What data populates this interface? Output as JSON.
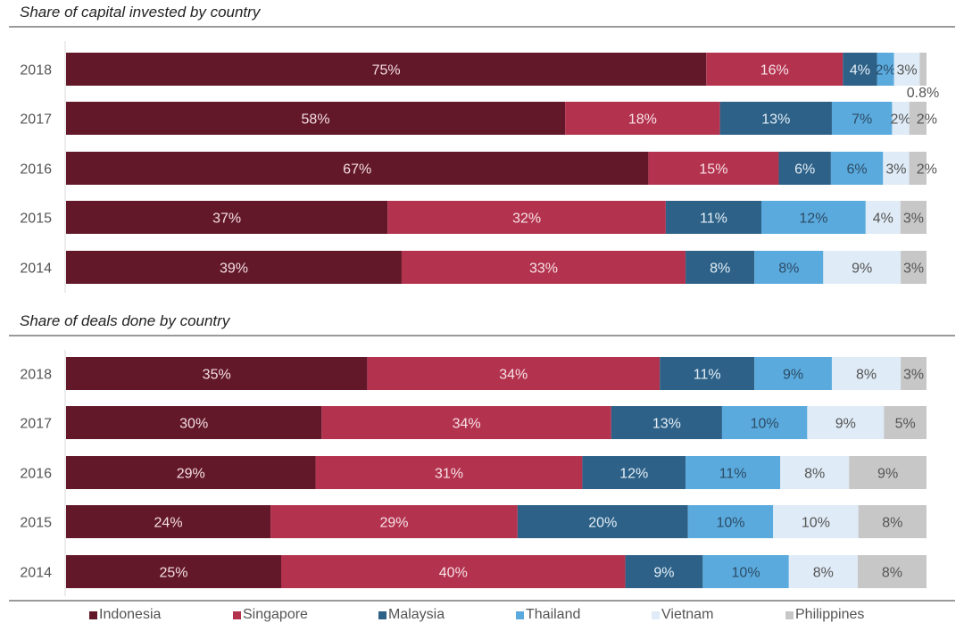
{
  "colors": {
    "Indonesia": "#631829",
    "Singapore": "#b3334f",
    "Malaysia": "#2d6187",
    "Thailand": "#5aaadd",
    "Vietnam": "#dfebf6",
    "Philippines": "#c7c7c7"
  },
  "label_colors": {
    "Indonesia": "#f3dde2",
    "Singapore": "#f7e1e6",
    "Malaysia": "#e3eef7",
    "Thailand": "#2d4c66",
    "Vietnam": "#555555",
    "Philippines": "#555555"
  },
  "legend": [
    {
      "label": "Indonesia",
      "color": "#631829"
    },
    {
      "label": "Singapore",
      "color": "#b3334f"
    },
    {
      "label": "Malaysia",
      "color": "#2d6187"
    },
    {
      "label": "Thailand",
      "color": "#5aaadd"
    },
    {
      "label": "Vietnam",
      "color": "#dfebf6"
    },
    {
      "label": "Philippines",
      "color": "#c7c7c7"
    }
  ],
  "chart_data": [
    {
      "type": "bar",
      "orientation": "horizontal",
      "stacked": true,
      "title": "Share of capital invested by country",
      "xlabel": "",
      "ylabel": "",
      "xlim": [
        0,
        100
      ],
      "categories": [
        "2018",
        "2017",
        "2016",
        "2015",
        "2014"
      ],
      "series": [
        {
          "name": "Indonesia",
          "values": [
            75,
            58,
            67,
            37,
            39
          ],
          "labels": [
            "75%",
            "58%",
            "67%",
            "37%",
            "39%"
          ]
        },
        {
          "name": "Singapore",
          "values": [
            16,
            18,
            15,
            32,
            33
          ],
          "labels": [
            "16%",
            "18%",
            "15%",
            "32%",
            "33%"
          ]
        },
        {
          "name": "Malaysia",
          "values": [
            4,
            13,
            6,
            11,
            8
          ],
          "labels": [
            "4%",
            "13%",
            "6%",
            "11%",
            "8%"
          ]
        },
        {
          "name": "Thailand",
          "values": [
            2,
            7,
            6,
            12,
            8
          ],
          "labels": [
            "2%",
            "7%",
            "6%",
            "12%",
            "8%"
          ]
        },
        {
          "name": "Vietnam",
          "values": [
            3,
            2,
            3,
            4,
            9
          ],
          "labels": [
            "3%",
            "2%",
            "3%",
            "4%",
            "9%"
          ]
        },
        {
          "name": "Philippines",
          "values": [
            0.8,
            2,
            2,
            3,
            3
          ],
          "labels": [
            "0.8%",
            "2%",
            "2%",
            "3%",
            "3%"
          ]
        }
      ]
    },
    {
      "type": "bar",
      "orientation": "horizontal",
      "stacked": true,
      "title": "Share of deals done by country",
      "xlabel": "",
      "ylabel": "",
      "xlim": [
        0,
        100
      ],
      "categories": [
        "2018",
        "2017",
        "2016",
        "2015",
        "2014"
      ],
      "series": [
        {
          "name": "Indonesia",
          "values": [
            35,
            30,
            29,
            24,
            25
          ],
          "labels": [
            "35%",
            "30%",
            "29%",
            "24%",
            "25%"
          ]
        },
        {
          "name": "Singapore",
          "values": [
            34,
            34,
            31,
            29,
            40
          ],
          "labels": [
            "34%",
            "34%",
            "31%",
            "29%",
            "40%"
          ]
        },
        {
          "name": "Malaysia",
          "values": [
            11,
            13,
            12,
            20,
            9
          ],
          "labels": [
            "11%",
            "13%",
            "12%",
            "20%",
            "9%"
          ]
        },
        {
          "name": "Thailand",
          "values": [
            9,
            10,
            11,
            10,
            10
          ],
          "labels": [
            "9%",
            "10%",
            "11%",
            "10%",
            "10%"
          ]
        },
        {
          "name": "Vietnam",
          "values": [
            8,
            9,
            8,
            10,
            8
          ],
          "labels": [
            "8%",
            "9%",
            "8%",
            "10%",
            "8%"
          ]
        },
        {
          "name": "Philippines",
          "values": [
            3,
            5,
            9,
            8,
            8
          ],
          "labels": [
            "3%",
            "5%",
            "9%",
            "8%",
            "8%"
          ]
        }
      ]
    }
  ]
}
